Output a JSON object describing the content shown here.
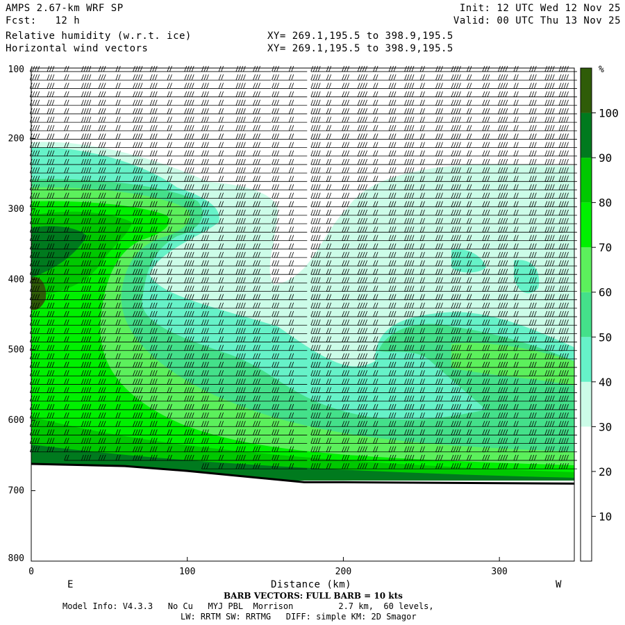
{
  "header": {
    "model": "AMPS 2.67-km WRF SP",
    "init": "Init: 12 UTC Wed 12 Nov 25",
    "fcst_label": "Fcst:",
    "fcst_value": "12 h",
    "valid": "Valid: 00 UTC Thu 13 Nov 25",
    "field1": "Relative humidity (w.r.t. ice)",
    "field2": "Horizontal wind vectors",
    "xy1": "XY= 269.1,195.5 to 398.9,195.5",
    "xy2": "XY= 269.1,195.5 to 398.9,195.5"
  },
  "footer": {
    "barb_note": "BARB VECTORS: FULL BARB = 10 kts",
    "model_info": "Model Info: V4.3.3   No Cu   MYJ PBL  Morrison         2.7 km,  60 levels,",
    "model_info2": "LW: RRTM SW: RRTMG   DIFF: simple KM: 2D Smagor"
  },
  "chart_data": {
    "type": "heatmap",
    "title": "Relative humidity (w.r.t. ice)",
    "xlabel": "Distance (km)",
    "ylabel": "",
    "x_ticks": [
      0,
      100,
      200,
      300
    ],
    "y_ticks": [
      100,
      200,
      300,
      400,
      500,
      600,
      700,
      800
    ],
    "xlim": [
      0,
      348
    ],
    "ylim": [
      100,
      800
    ],
    "y_inverted": true,
    "left_label": "E",
    "right_label": "W",
    "colorbar": {
      "unit": "%",
      "ticks": [
        10,
        20,
        30,
        40,
        50,
        60,
        70,
        80,
        90,
        100
      ],
      "bands": [
        {
          "from": 0,
          "to": 30,
          "color": "#ffffff"
        },
        {
          "from": 30,
          "to": 40,
          "color": "#ccfce8"
        },
        {
          "from": 40,
          "to": 50,
          "color": "#66f2c8"
        },
        {
          "from": 50,
          "to": 60,
          "color": "#44e08a"
        },
        {
          "from": 60,
          "to": 70,
          "color": "#5cf05c"
        },
        {
          "from": 70,
          "to": 80,
          "color": "#00f000"
        },
        {
          "from": 80,
          "to": 90,
          "color": "#00c800"
        },
        {
          "from": 90,
          "to": 100,
          "color": "#007a1e"
        },
        {
          "from": 100,
          "to": 110,
          "color": "#2f5c08"
        }
      ]
    },
    "terrain_pressure": [
      [
        0,
        662
      ],
      [
        60,
        665
      ],
      [
        100,
        672
      ],
      [
        175,
        688
      ],
      [
        200,
        688
      ],
      [
        348,
        690
      ]
    ],
    "wind_column_x_km": [
      5,
      16,
      27,
      38,
      49,
      60,
      71,
      82,
      93,
      104,
      115,
      126,
      137,
      148,
      160,
      171,
      185,
      195,
      205,
      215,
      225,
      235,
      245,
      255,
      265,
      275,
      285,
      295,
      305,
      315,
      325,
      335,
      344
    ],
    "wind_level_p_hpa": [
      105,
      117,
      129,
      141,
      153,
      165,
      177,
      189,
      201,
      213,
      225,
      237,
      249,
      261,
      273,
      285,
      297,
      309,
      321,
      333,
      345,
      357,
      369,
      381,
      393,
      405,
      417,
      429,
      441,
      453,
      465,
      477,
      489,
      501,
      513,
      525,
      537,
      549,
      561,
      573,
      585,
      597,
      609,
      621,
      633,
      645,
      657,
      669
    ]
  }
}
